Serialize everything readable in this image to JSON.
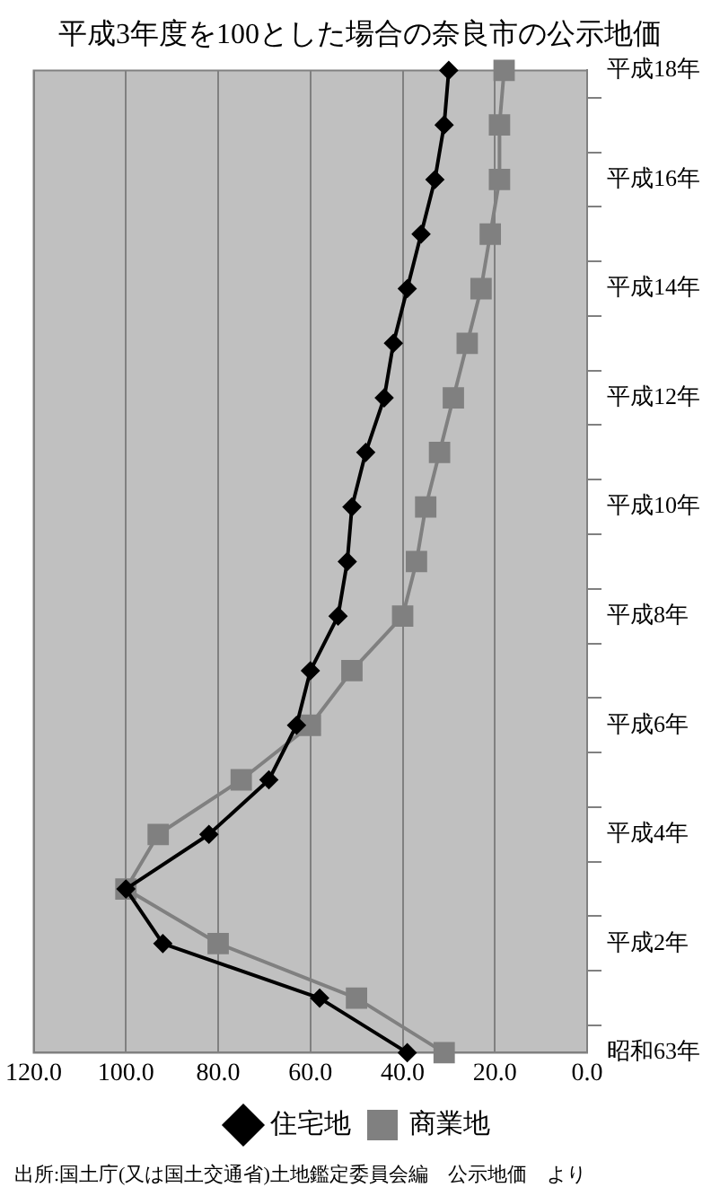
{
  "chart_data": {
    "type": "line",
    "title": "平成3年度を100とした場合の奈良市の公示地価",
    "orientation": "horizontal",
    "categories": [
      "平成18年",
      null,
      "平成16年",
      null,
      "平成14年",
      null,
      "平成12年",
      null,
      "平成10年",
      null,
      "平成8年",
      null,
      "平成6年",
      null,
      "平成4年",
      null,
      "平成2年",
      null,
      "昭和63年"
    ],
    "series": [
      {
        "name": "住宅地",
        "color": "#000000",
        "marker": "diamond",
        "values": [
          30,
          31,
          33,
          36,
          39,
          42,
          44,
          48,
          51,
          52,
          54,
          60,
          63,
          69,
          82,
          100,
          92,
          58,
          39
        ]
      },
      {
        "name": "商業地",
        "color": "#808080",
        "marker": "square",
        "values": [
          18,
          19,
          19,
          21,
          23,
          26,
          29,
          32,
          35,
          37,
          40,
          51,
          60,
          75,
          93,
          100,
          80,
          50,
          31
        ]
      }
    ],
    "xlim": [
      120,
      0
    ],
    "xticks": [
      {
        "value": 120,
        "label": "120.0"
      },
      {
        "value": 100,
        "label": "100.0"
      },
      {
        "value": 80,
        "label": "80.0"
      },
      {
        "value": 60,
        "label": "60.0"
      },
      {
        "value": 40,
        "label": "40.0"
      },
      {
        "value": 20,
        "label": "20.0"
      },
      {
        "value": 0,
        "label": "0.0"
      }
    ],
    "grid": "x",
    "legend": "bottom",
    "line_style": "solid",
    "annotations": [
      "出所:国土庁(又は国土交通省)土地鑑定委員会編　公示地価　より"
    ]
  }
}
